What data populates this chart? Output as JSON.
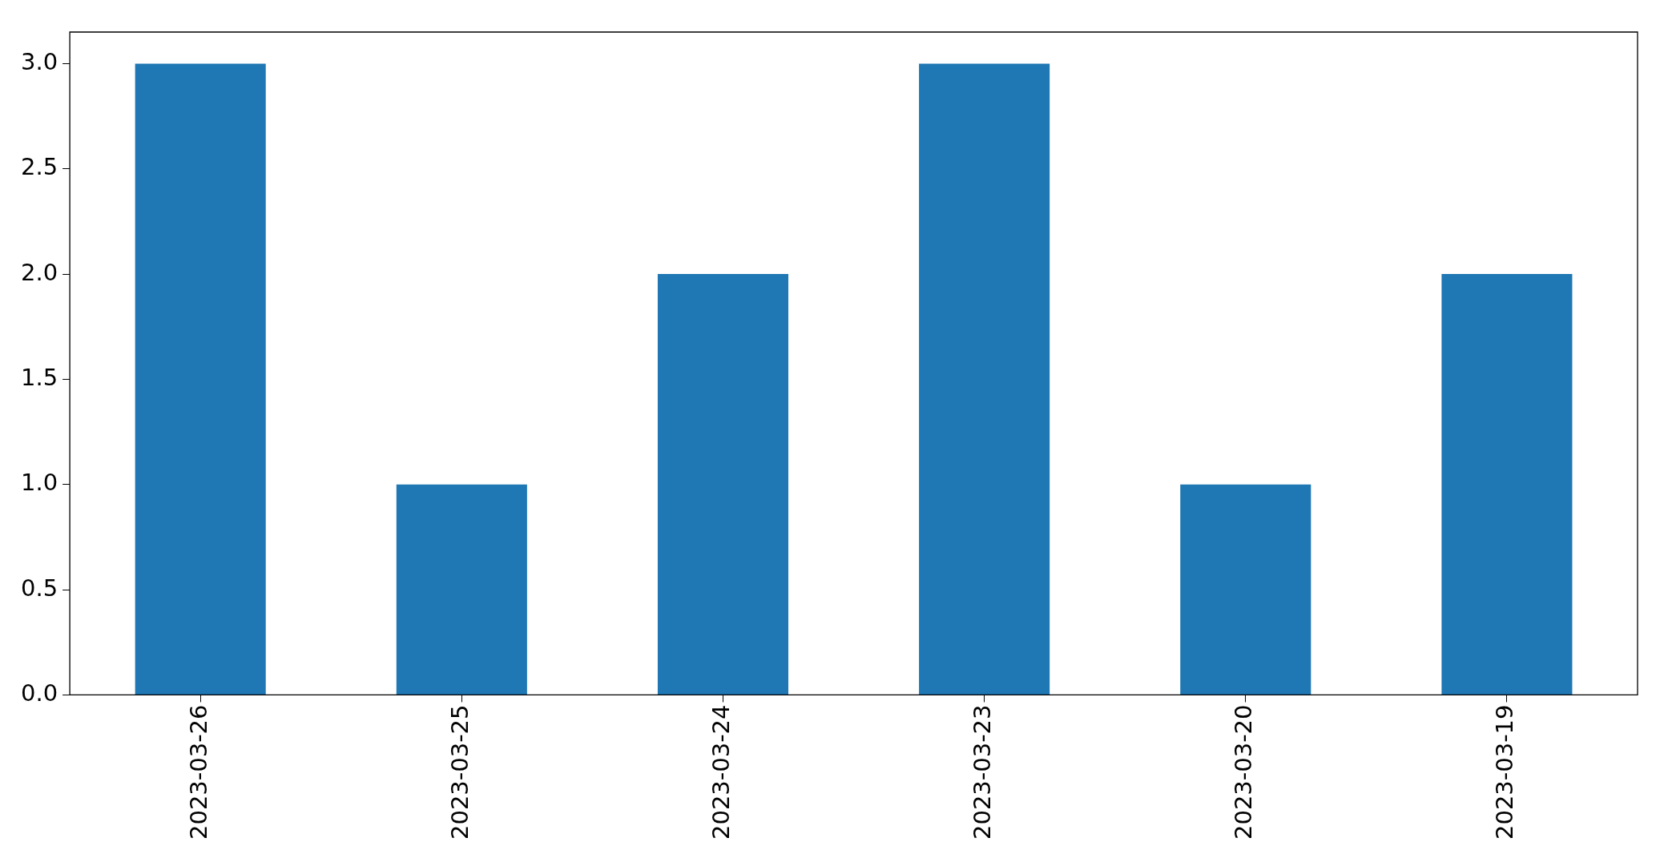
{
  "chart_data": {
    "type": "bar",
    "categories": [
      "2023-03-26",
      "2023-03-25",
      "2023-03-24",
      "2023-03-23",
      "2023-03-20",
      "2023-03-19"
    ],
    "values": [
      3,
      1,
      2,
      3,
      1,
      2
    ],
    "color": "#1f77b4",
    "ylim": [
      0,
      3.15
    ],
    "yticks": [
      {
        "value": 0,
        "label": "0.0"
      },
      {
        "value": 0.5,
        "label": "0.5"
      },
      {
        "value": 1,
        "label": "1.0"
      },
      {
        "value": 1.5,
        "label": "1.5"
      },
      {
        "value": 2,
        "label": "2.0"
      },
      {
        "value": 2.5,
        "label": "2.5"
      },
      {
        "value": 3,
        "label": "3.0"
      }
    ],
    "grid": false,
    "legend": false
  }
}
